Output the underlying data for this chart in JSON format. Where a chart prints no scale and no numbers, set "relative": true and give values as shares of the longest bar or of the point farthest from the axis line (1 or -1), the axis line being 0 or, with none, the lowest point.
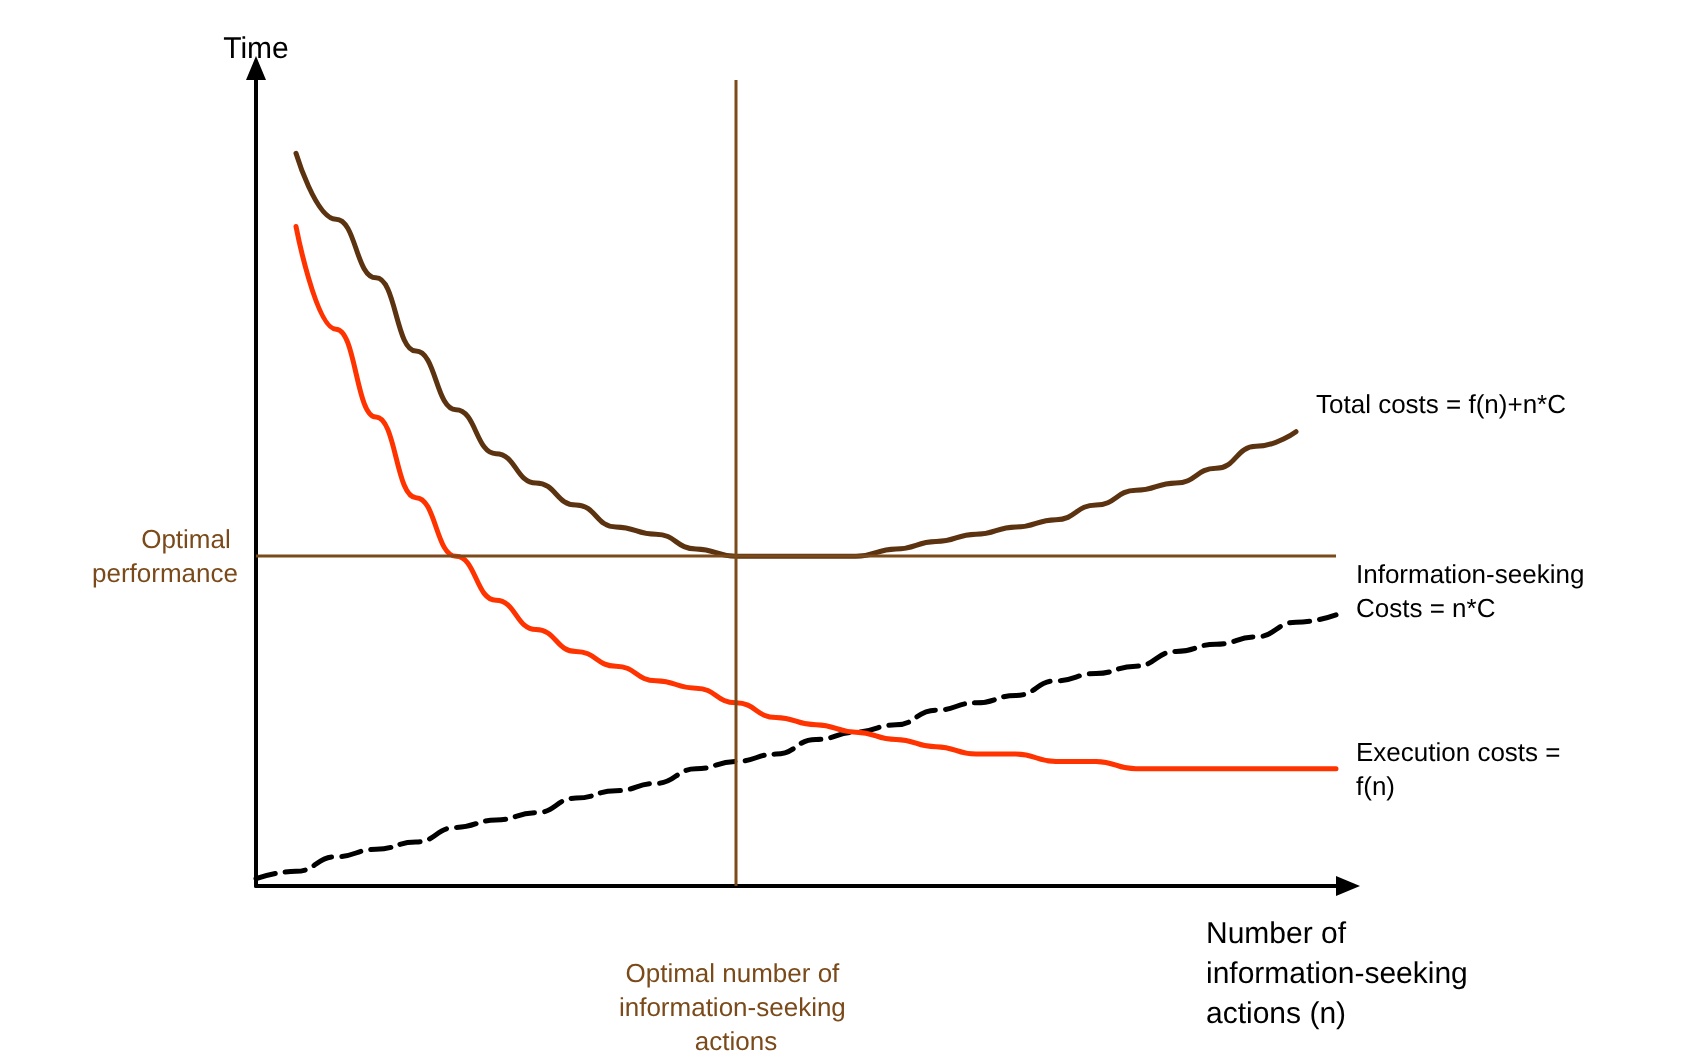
{
  "chart_data": {
    "type": "line",
    "relative": true,
    "xlabel": "Number of information-seeking actions (n)",
    "ylabel": "Time",
    "categories": [
      null,
      null,
      null,
      null,
      null,
      null,
      null,
      null,
      null,
      null,
      null,
      null,
      null,
      null,
      null,
      null,
      null,
      null,
      null,
      null,
      null,
      null,
      null,
      null,
      null,
      null,
      null,
      null
    ],
    "series": [
      {
        "name": "Total costs = f(n)+n*C",
        "color": "#5c3310",
        "line_style": "solid",
        "values": [
          null,
          1.0,
          0.91,
          0.83,
          0.73,
          0.65,
          0.59,
          0.55,
          0.52,
          0.49,
          0.48,
          0.46,
          0.45,
          0.45,
          0.45,
          0.45,
          0.46,
          0.47,
          0.48,
          0.49,
          0.5,
          0.52,
          0.54,
          0.55,
          0.57,
          0.6,
          0.62,
          null
        ]
      },
      {
        "name": "Information-seeking Costs = n*C",
        "color": "#000000",
        "line_style": "dashed",
        "values": [
          0.01,
          0.02,
          0.04,
          0.05,
          0.06,
          0.08,
          0.09,
          0.1,
          0.12,
          0.13,
          0.14,
          0.16,
          0.17,
          0.18,
          0.2,
          0.21,
          0.22,
          0.24,
          0.25,
          0.26,
          0.28,
          0.29,
          0.3,
          0.32,
          0.33,
          0.34,
          0.36,
          0.37
        ]
      },
      {
        "name": "Execution costs = f(n)",
        "color": "#ff3300",
        "line_style": "solid",
        "values": [
          null,
          0.9,
          0.76,
          0.64,
          0.53,
          0.45,
          0.39,
          0.35,
          0.32,
          0.3,
          0.28,
          0.27,
          0.25,
          0.23,
          0.22,
          0.21,
          0.2,
          0.19,
          0.18,
          0.18,
          0.17,
          0.17,
          0.16,
          0.16,
          0.16,
          0.16,
          0.16,
          0.16
        ]
      }
    ],
    "ref_lines": [
      {
        "axis": "y",
        "value": 0.45,
        "label": "Optimal performance",
        "color": "#7a4a1a"
      }
    ],
    "annotations": [
      "Optimal number of information-seeking actions"
    ],
    "grid": false,
    "legend": false,
    "marker": "none"
  }
}
